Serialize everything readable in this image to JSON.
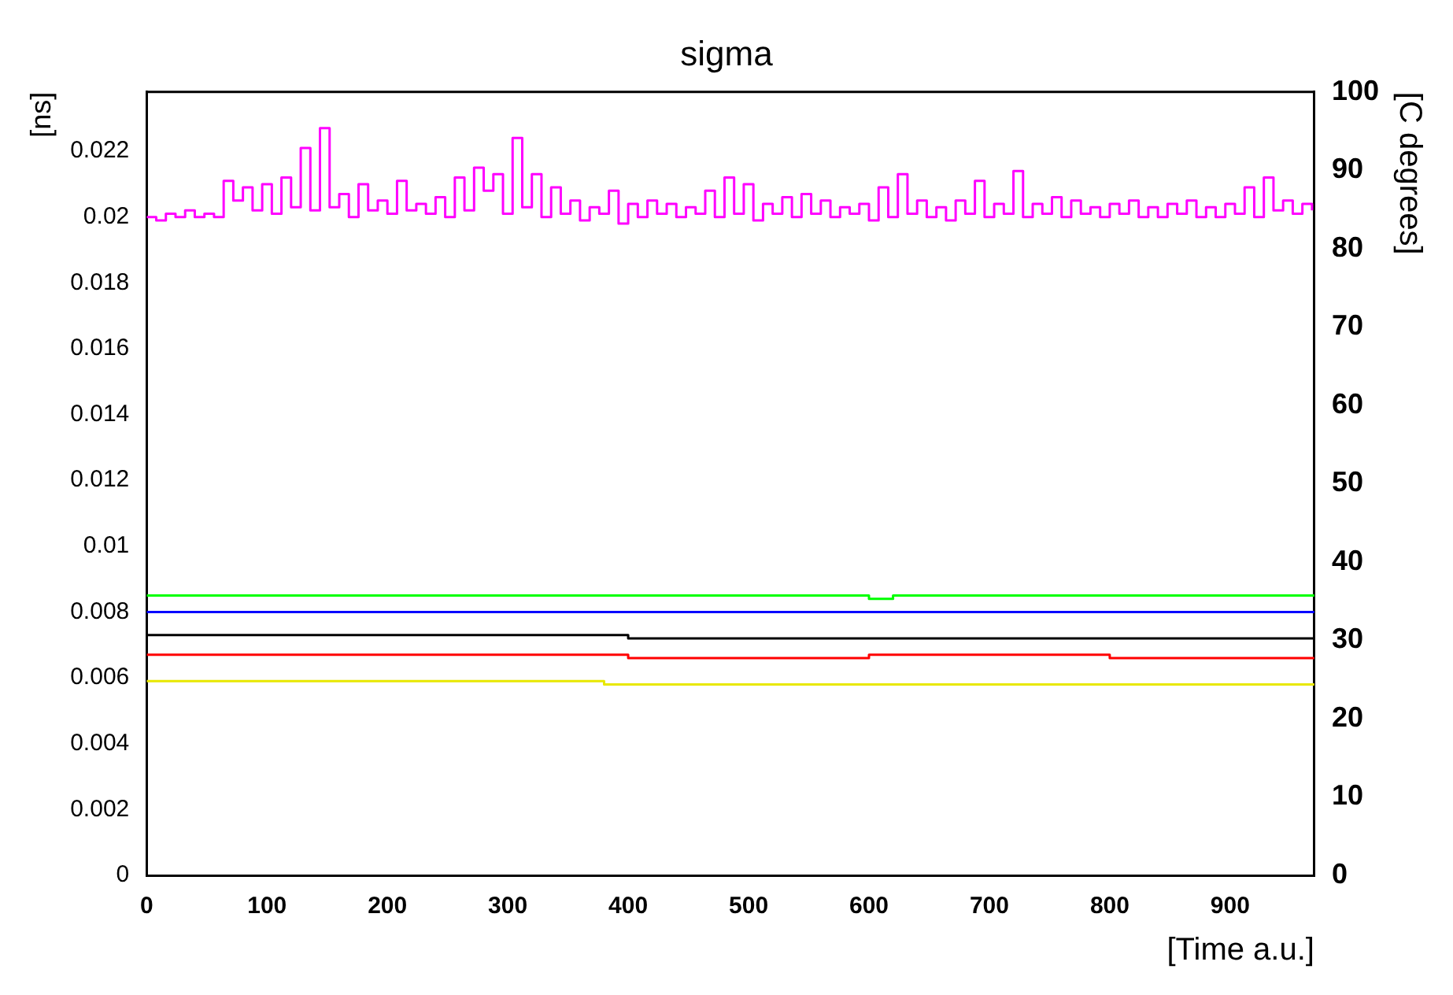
{
  "chart_data": {
    "type": "step",
    "title": "sigma",
    "xlabel": "[Time a.u.]",
    "ylabel": "[ns]",
    "y2label": "[C degrees]",
    "x": [
      0,
      8,
      16,
      24,
      32,
      40,
      48,
      56,
      64,
      72,
      80,
      88,
      96,
      104,
      112,
      120,
      128,
      136,
      144,
      152,
      160,
      168,
      176,
      184,
      192,
      200,
      208,
      216,
      224,
      232,
      240,
      248,
      256,
      264,
      272,
      280,
      288,
      296,
      304,
      312,
      320,
      328,
      336,
      344,
      352,
      360,
      368,
      376,
      384,
      392,
      400,
      408,
      416,
      424,
      432,
      440,
      448,
      456,
      464,
      472,
      480,
      488,
      496,
      504,
      512,
      520,
      528,
      536,
      544,
      552,
      560,
      568,
      576,
      584,
      592,
      600,
      608,
      616,
      624,
      632,
      640,
      648,
      656,
      664,
      672,
      680,
      688,
      696,
      704,
      712,
      720,
      728,
      736,
      744,
      752,
      760,
      768,
      776,
      784,
      792,
      800,
      808,
      816,
      824,
      832,
      840,
      848,
      856,
      864,
      872,
      880,
      888,
      896,
      904,
      912,
      920,
      928,
      936,
      944,
      952,
      960,
      968
    ],
    "series": [
      {
        "color": "#ff00ff",
        "values": [
          0.02,
          0.0199,
          0.0201,
          0.02,
          0.0202,
          0.02,
          0.0201,
          0.02,
          0.0211,
          0.0205,
          0.0209,
          0.0202,
          0.021,
          0.0201,
          0.0212,
          0.0203,
          0.0221,
          0.0202,
          0.0227,
          0.0203,
          0.0207,
          0.02,
          0.021,
          0.0202,
          0.0205,
          0.0201,
          0.0211,
          0.0202,
          0.0204,
          0.0201,
          0.0206,
          0.02,
          0.0212,
          0.0202,
          0.0215,
          0.0208,
          0.0213,
          0.0201,
          0.0224,
          0.0203,
          0.0213,
          0.02,
          0.0209,
          0.0201,
          0.0205,
          0.0199,
          0.0203,
          0.0201,
          0.0208,
          0.0198,
          0.0204,
          0.02,
          0.0205,
          0.0201,
          0.0204,
          0.02,
          0.0203,
          0.0201,
          0.0208,
          0.02,
          0.0212,
          0.0201,
          0.021,
          0.0199,
          0.0204,
          0.0201,
          0.0206,
          0.02,
          0.0207,
          0.0201,
          0.0205,
          0.02,
          0.0203,
          0.0201,
          0.0204,
          0.0199,
          0.0209,
          0.02,
          0.0213,
          0.0201,
          0.0205,
          0.02,
          0.0203,
          0.0199,
          0.0205,
          0.0201,
          0.0211,
          0.02,
          0.0204,
          0.0201,
          0.0214,
          0.02,
          0.0204,
          0.0201,
          0.0206,
          0.02,
          0.0205,
          0.0201,
          0.0203,
          0.02,
          0.0204,
          0.0201,
          0.0205,
          0.02,
          0.0203,
          0.02,
          0.0204,
          0.0201,
          0.0205,
          0.02,
          0.0203,
          0.02,
          0.0204,
          0.0201,
          0.0209,
          0.02,
          0.0212,
          0.0202,
          0.0205,
          0.0201,
          0.0204,
          0.0202
        ]
      },
      {
        "color": "#00ff00",
        "x": [
          0,
          200,
          400,
          600,
          620,
          800,
          970
        ],
        "values": [
          0.0085,
          0.0085,
          0.0085,
          0.0084,
          0.0085,
          0.0085,
          0.0085
        ]
      },
      {
        "color": "#0000ff",
        "x": [
          0,
          200,
          400,
          600,
          800,
          970
        ],
        "values": [
          0.008,
          0.008,
          0.008,
          0.008,
          0.008,
          0.008
        ]
      },
      {
        "color": "#000000",
        "x": [
          0,
          200,
          400,
          600,
          800,
          970
        ],
        "values": [
          0.0073,
          0.0073,
          0.0072,
          0.0072,
          0.0072,
          0.0072
        ]
      },
      {
        "color": "#ff0000",
        "x": [
          0,
          200,
          400,
          600,
          800,
          970
        ],
        "values": [
          0.0067,
          0.0067,
          0.0066,
          0.0067,
          0.0066,
          0.0066
        ]
      },
      {
        "color": "#e8e800",
        "x": [
          0,
          200,
          380,
          600,
          800,
          970
        ],
        "values": [
          0.0059,
          0.0059,
          0.0058,
          0.0058,
          0.0058,
          0.0058
        ]
      }
    ],
    "xlim": [
      0,
      970
    ],
    "xticks": [
      0,
      100,
      200,
      300,
      400,
      500,
      600,
      700,
      800,
      900
    ],
    "ylim": [
      0,
      0.0238
    ],
    "yticks": [
      0,
      0.002,
      0.004,
      0.006,
      0.008,
      0.01,
      0.012,
      0.014,
      0.016,
      0.018,
      0.02,
      0.022
    ],
    "y2lim": [
      0,
      100
    ],
    "y2ticks": [
      0,
      10,
      20,
      30,
      40,
      50,
      60,
      70,
      80,
      90,
      100
    ]
  }
}
